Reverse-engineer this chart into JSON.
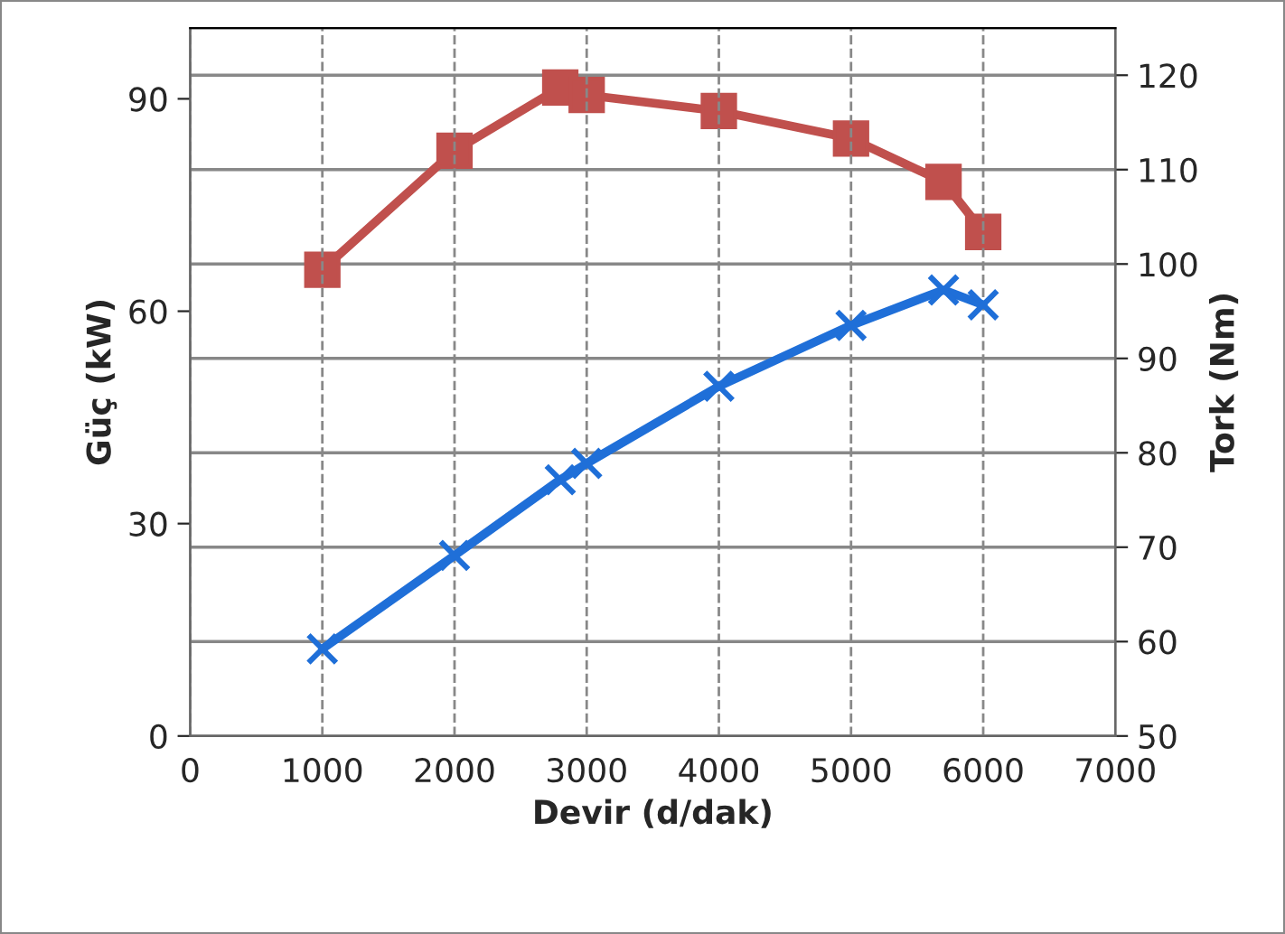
{
  "chart_data": {
    "type": "line",
    "xlabel": "Devir (d/dak)",
    "ylabel": "Güç (kW)",
    "y2label": "Tork (Nm)",
    "x": [
      1000,
      2000,
      2800,
      3000,
      4000,
      5000,
      5700,
      6000
    ],
    "series": [
      {
        "color": "#c0504d",
        "marker": "square",
        "axis": "y2",
        "values": [
          99.4,
          112.0,
          118.7,
          117.9,
          116.2,
          113.3,
          108.7,
          103.4
        ]
      },
      {
        "color": "#1f6fd8",
        "marker": "cross",
        "axis": "y",
        "values": [
          12.3,
          25.5,
          36.2,
          38.5,
          49.4,
          58.0,
          63.0,
          60.9
        ]
      }
    ],
    "xlim": [
      0,
      7000
    ],
    "xticks": [
      0,
      1000,
      2000,
      3000,
      4000,
      5000,
      6000,
      7000
    ],
    "ylim": [
      0,
      100
    ],
    "yticks": [
      0,
      30,
      60,
      90
    ],
    "y2lim": [
      50,
      125
    ],
    "y2ticks": [
      50,
      60,
      70,
      80,
      90,
      100,
      110,
      120
    ],
    "grid": true,
    "legend": false,
    "line_style": "solid"
  }
}
